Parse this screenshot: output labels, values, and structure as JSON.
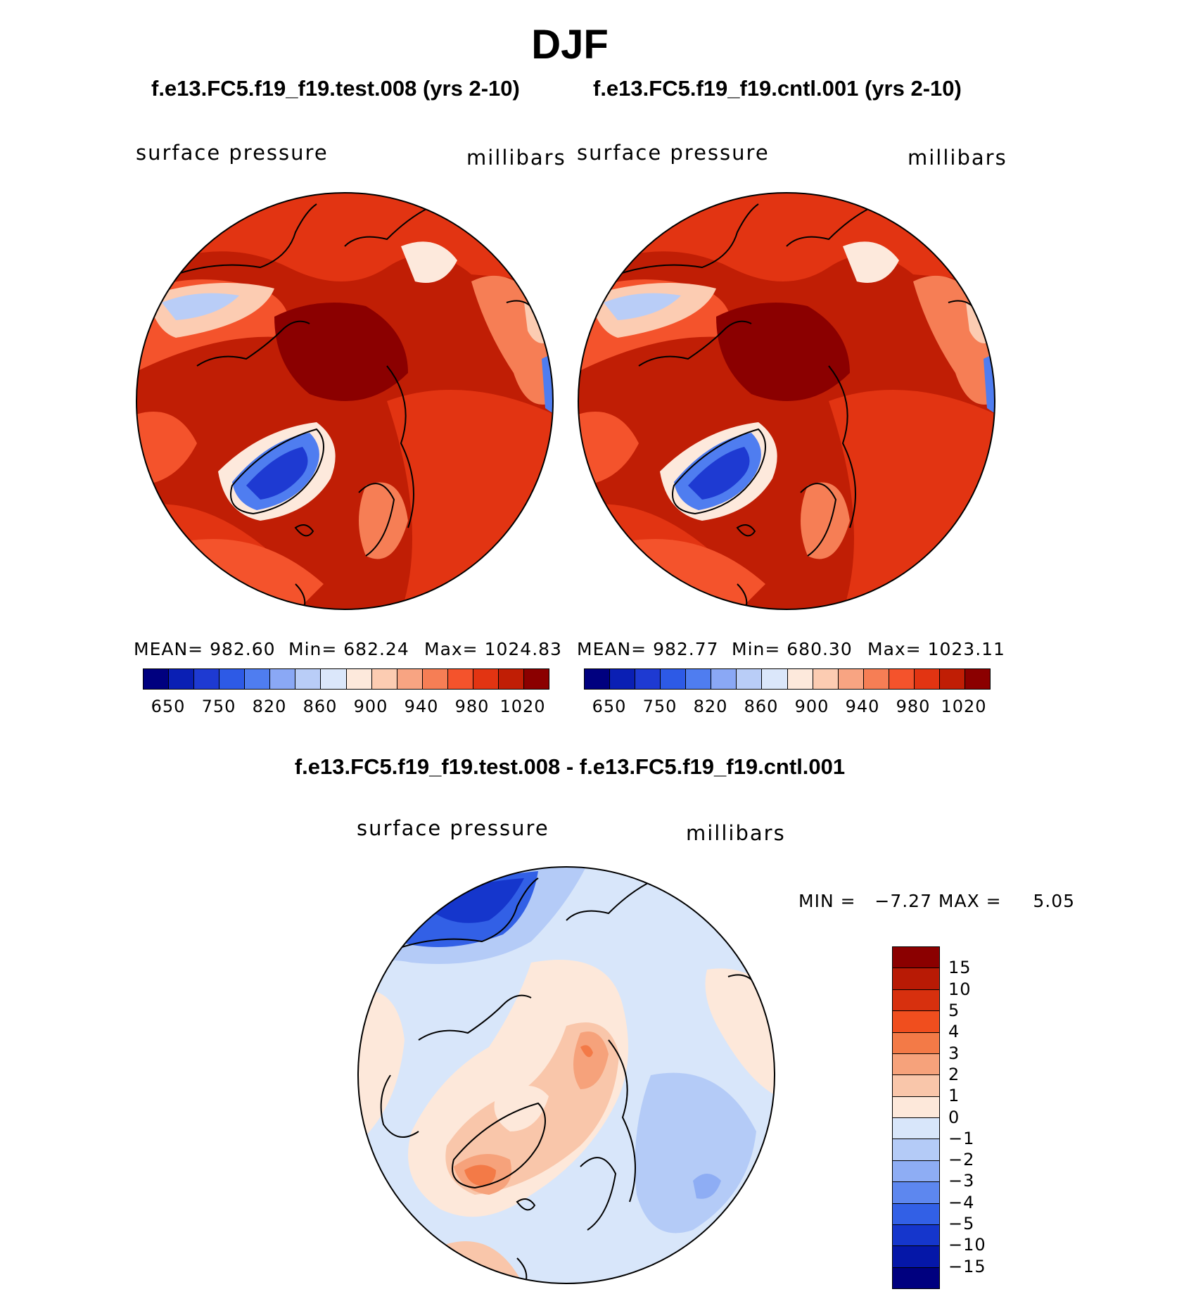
{
  "chart_data": [
    {
      "type": "heatmap",
      "panel": "left",
      "title": "f.e13.FC5.f19_f19.test.008 (yrs 2-10)",
      "variable_label": "surface pressure",
      "units_label": "millibars",
      "stats": {
        "mean": "MEAN= 982.60",
        "min": "Min= 682.24",
        "max": "Max= 1024.83"
      },
      "colorbar_ticks": [
        "650",
        "750",
        "820",
        "860",
        "900",
        "940",
        "980",
        "1020"
      ],
      "colorbar_colors": [
        "#00007f",
        "#0a1fb4",
        "#1e3ad2",
        "#2d5ae6",
        "#4f7df0",
        "#8aa8f5",
        "#b9cdf7",
        "#dbe7fa",
        "#fde9dc",
        "#fcccb2",
        "#f8a482",
        "#f67e55",
        "#f4532c",
        "#e23412",
        "#c01e05",
        "#8b0000"
      ]
    },
    {
      "type": "heatmap",
      "panel": "right",
      "title": "f.e13.FC5.f19_f19.cntl.001 (yrs 2-10)",
      "variable_label": "surface pressure",
      "units_label": "millibars",
      "stats": {
        "mean": "MEAN= 982.77",
        "min": "Min= 680.30",
        "max": "Max= 1023.11"
      },
      "colorbar_ticks": [
        "650",
        "750",
        "820",
        "860",
        "900",
        "940",
        "980",
        "1020"
      ],
      "colorbar_colors": [
        "#00007f",
        "#0a1fb4",
        "#1e3ad2",
        "#2d5ae6",
        "#4f7df0",
        "#8aa8f5",
        "#b9cdf7",
        "#dbe7fa",
        "#fde9dc",
        "#fcccb2",
        "#f8a482",
        "#f67e55",
        "#f4532c",
        "#e23412",
        "#c01e05",
        "#8b0000"
      ]
    },
    {
      "type": "heatmap",
      "panel": "difference",
      "title": "f.e13.FC5.f19_f19.test.008 - f.e13.FC5.f19_f19.cntl.001",
      "variable_label": "surface pressure",
      "units_label": "millibars",
      "minmax": "MIN =   −7.27 MAX =     5.05",
      "colorbar_ticks": [
        "15",
        "10",
        "5",
        "4",
        "3",
        "2",
        "1",
        "0",
        "−1",
        "−2",
        "−3",
        "−4",
        "−5",
        "−10",
        "−15"
      ],
      "colorbar_colors": [
        "#8b0000",
        "#b81a05",
        "#d7300e",
        "#f04e1e",
        "#f37a47",
        "#f6a27b",
        "#f9c6aa",
        "#fde8da",
        "#d8e6fa",
        "#b4cbf7",
        "#8eadf4",
        "#5d87ef",
        "#3260e6",
        "#1536cc",
        "#0517a8",
        "#00007f"
      ]
    }
  ],
  "page": {
    "title": "DJF"
  }
}
